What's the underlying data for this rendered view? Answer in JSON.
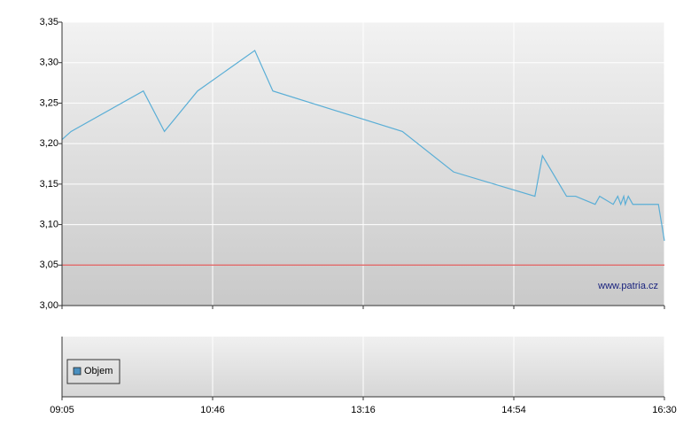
{
  "chart_data": {
    "type": "line",
    "watermark": "www.patria.cz",
    "x": [
      0,
      0.06,
      0.54,
      0.68,
      0.9,
      1.28,
      1.4,
      2.26,
      2.6,
      3.14,
      3.19,
      3.35,
      3.41,
      3.54,
      3.57,
      3.66,
      3.69,
      3.71,
      3.73,
      3.74,
      3.76,
      3.79,
      3.96,
      4
    ],
    "series": [
      {
        "color": "#5aaed6",
        "values": [
          3.205,
          3.215,
          3.265,
          3.215,
          3.265,
          3.315,
          3.265,
          3.215,
          3.165,
          3.135,
          3.185,
          3.135,
          3.135,
          3.125,
          3.135,
          3.125,
          3.135,
          3.125,
          3.135,
          3.125,
          3.135,
          3.125,
          3.125,
          3.08
        ]
      }
    ],
    "reference_line": {
      "value": 3.05,
      "color": "#e05a5a"
    },
    "xlim": [
      0,
      4
    ],
    "xticks": [
      {
        "value": 0,
        "label": "09:05"
      },
      {
        "value": 1,
        "label": "10:46"
      },
      {
        "value": 2,
        "label": "13:16"
      },
      {
        "value": 3,
        "label": "14:54"
      },
      {
        "value": 4,
        "label": "16:30"
      }
    ],
    "ylim": [
      3.0,
      3.35
    ],
    "yticks": [
      {
        "value": 3.0,
        "label": "3,00"
      },
      {
        "value": 3.05,
        "label": "3,05"
      },
      {
        "value": 3.1,
        "label": "3,10"
      },
      {
        "value": 3.15,
        "label": "3,15"
      },
      {
        "value": 3.2,
        "label": "3,20"
      },
      {
        "value": 3.25,
        "label": "3,25"
      },
      {
        "value": 3.3,
        "label": "3,30"
      },
      {
        "value": 3.35,
        "label": "3,35"
      }
    ],
    "grid": true,
    "legend": [
      {
        "name": "Objem",
        "color": "#4a90c0"
      }
    ]
  }
}
